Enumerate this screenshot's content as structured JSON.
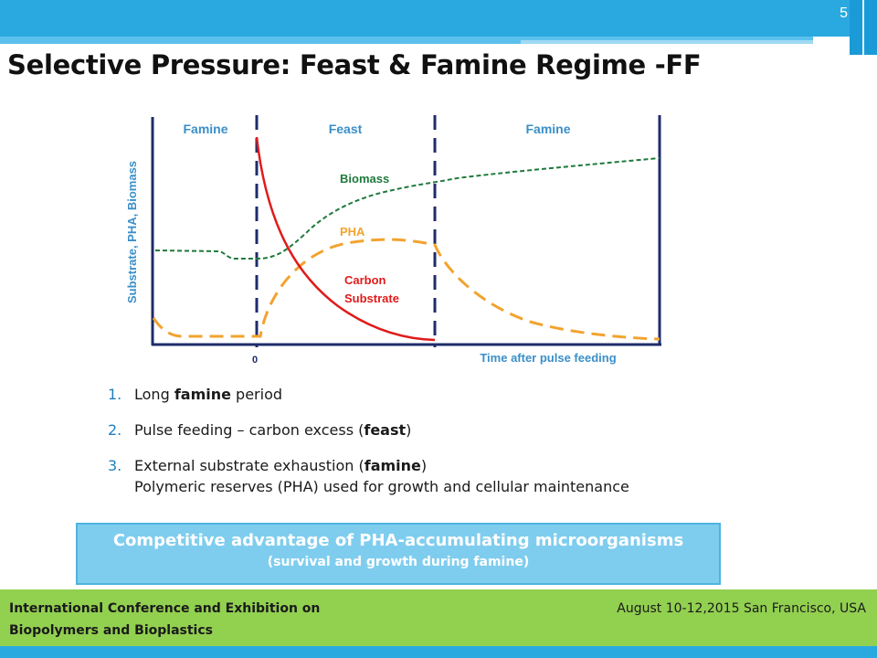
{
  "slide_number": "5",
  "title": "Selective Pressure: Feast & Famine Regime -FF",
  "diagram": {
    "phases": [
      "Famine",
      "Feast",
      "Famine"
    ],
    "y_axis_label": "Substrate, PHA, Biomass",
    "x_axis_label": "Time after pulse feeding",
    "x_origin_label": "0",
    "curves": {
      "biomass": "Biomass",
      "pha": "PHA",
      "carbon_line1": "Carbon",
      "carbon_line2": "Substrate"
    },
    "colors": {
      "axis": "#1f2c6b",
      "divider": "#1f2c6b",
      "biomass": "#1e7a3c",
      "pha": "#f2a32f",
      "carbon": "#e01b1b",
      "label_blue": "#3a8fc8"
    }
  },
  "list": [
    {
      "num": "1.",
      "before": "Long ",
      "bold": "famine",
      "after": " period",
      "extra": ""
    },
    {
      "num": "2.",
      "before": "Pulse feeding – carbon excess (",
      "bold": "feast",
      "after": ")",
      "extra": ""
    },
    {
      "num": "3.",
      "before": "External substrate exhaustion (",
      "bold": "famine",
      "after": ")",
      "extra": "Polymeric reserves (PHA) used for growth and cellular maintenance"
    }
  ],
  "callout": {
    "main": "Competitive advantage of PHA-accumulating microorganisms",
    "sub": "(survival and growth during famine)"
  },
  "footer": {
    "left_line1": "International Conference and Exhibition on",
    "left_line2": "Biopolymers and Bioplastics",
    "right": "August 10-12,2015 San Francisco, USA"
  }
}
